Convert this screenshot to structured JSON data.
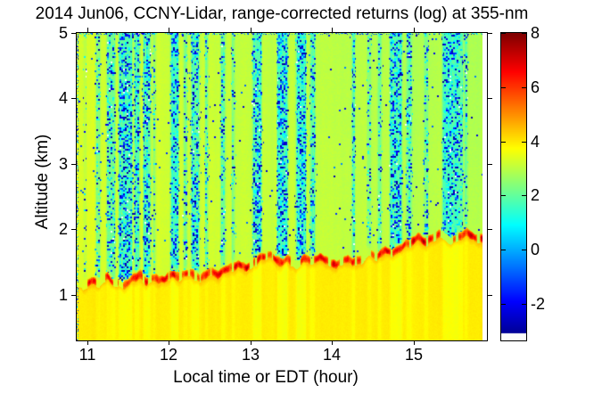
{
  "chart_data": {
    "type": "heatmap",
    "title": "2014 Jun06, CCNY-Lidar, range-corrected returns (log) at 355-nm",
    "xlabel": "Local time or EDT (hour)",
    "ylabel": "Altitude (km)",
    "x_ticks": [
      11,
      12,
      13,
      14,
      15
    ],
    "y_ticks": [
      1,
      2,
      3,
      4,
      5
    ],
    "x_range": [
      10.87,
      15.9
    ],
    "x_data_end": 15.84,
    "y_range": [
      0.3,
      5.0
    ],
    "grid": false,
    "colorbar": {
      "position": "right",
      "ticks": [
        8,
        6,
        4,
        2,
        0,
        -2
      ],
      "vmin": -3.35,
      "vmax": 8,
      "white_below": -3.1,
      "colormap": "jet"
    },
    "field": {
      "below_bl_value": 3.95,
      "above_bl_value_left": 3.38,
      "above_bl_value_right": 2.92,
      "stripe_value": 1.45,
      "speckle_value_range": [
        -3.2,
        -0.4
      ],
      "bl_peak_value": 7.4
    },
    "boundary_layer_km": [
      [
        10.87,
        1.18
      ],
      [
        10.95,
        1.13
      ],
      [
        11.05,
        1.22
      ],
      [
        11.15,
        1.18
      ],
      [
        11.25,
        1.26
      ],
      [
        11.35,
        1.18
      ],
      [
        11.45,
        1.15
      ],
      [
        11.55,
        1.23
      ],
      [
        11.65,
        1.27
      ],
      [
        11.72,
        1.19
      ],
      [
        11.85,
        1.25
      ],
      [
        11.95,
        1.22
      ],
      [
        12.05,
        1.3
      ],
      [
        12.15,
        1.26
      ],
      [
        12.25,
        1.33
      ],
      [
        12.4,
        1.28
      ],
      [
        12.5,
        1.34
      ],
      [
        12.6,
        1.3
      ],
      [
        12.7,
        1.38
      ],
      [
        12.85,
        1.44
      ],
      [
        12.95,
        1.4
      ],
      [
        13.05,
        1.5
      ],
      [
        13.15,
        1.56
      ],
      [
        13.25,
        1.6
      ],
      [
        13.35,
        1.48
      ],
      [
        13.45,
        1.53
      ],
      [
        13.55,
        1.44
      ],
      [
        13.65,
        1.56
      ],
      [
        13.75,
        1.52
      ],
      [
        13.85,
        1.58
      ],
      [
        13.95,
        1.5
      ],
      [
        14.05,
        1.46
      ],
      [
        14.15,
        1.55
      ],
      [
        14.25,
        1.5
      ],
      [
        14.35,
        1.54
      ],
      [
        14.45,
        1.62
      ],
      [
        14.55,
        1.58
      ],
      [
        14.65,
        1.68
      ],
      [
        14.75,
        1.63
      ],
      [
        14.85,
        1.72
      ],
      [
        14.95,
        1.8
      ],
      [
        15.05,
        1.88
      ],
      [
        15.15,
        1.8
      ],
      [
        15.25,
        1.86
      ],
      [
        15.35,
        1.92
      ],
      [
        15.45,
        1.82
      ],
      [
        15.55,
        1.9
      ],
      [
        15.65,
        1.94
      ],
      [
        15.75,
        1.86
      ],
      [
        15.84,
        1.9
      ]
    ],
    "cloud_stripes": [
      [
        10.97,
        0.03,
        0.15
      ],
      [
        11.13,
        0.05,
        0.5
      ],
      [
        11.29,
        0.1,
        0.6
      ],
      [
        11.47,
        0.16,
        0.95
      ],
      [
        11.61,
        0.06,
        0.7
      ],
      [
        11.73,
        0.08,
        0.8
      ],
      [
        11.82,
        0.03,
        0.4
      ],
      [
        12.07,
        0.09,
        0.9
      ],
      [
        12.2,
        0.04,
        0.4
      ],
      [
        12.32,
        0.09,
        0.75
      ],
      [
        12.46,
        0.03,
        0.45
      ],
      [
        12.66,
        0.05,
        0.55
      ],
      [
        12.79,
        0.03,
        0.4
      ],
      [
        13.08,
        0.1,
        0.9
      ],
      [
        13.39,
        0.12,
        1.0
      ],
      [
        13.62,
        0.11,
        0.95
      ],
      [
        13.76,
        0.06,
        0.6
      ],
      [
        14.26,
        0.03,
        0.55
      ],
      [
        14.45,
        0.04,
        0.35
      ],
      [
        14.58,
        0.04,
        0.45
      ],
      [
        14.78,
        0.14,
        0.95
      ],
      [
        14.94,
        0.06,
        0.6
      ],
      [
        15.15,
        0.04,
        0.5
      ],
      [
        15.41,
        0.11,
        0.9
      ],
      [
        15.47,
        0.16,
        0.85
      ],
      [
        15.57,
        0.05,
        0.6
      ],
      [
        15.64,
        0.03,
        0.45
      ]
    ]
  }
}
